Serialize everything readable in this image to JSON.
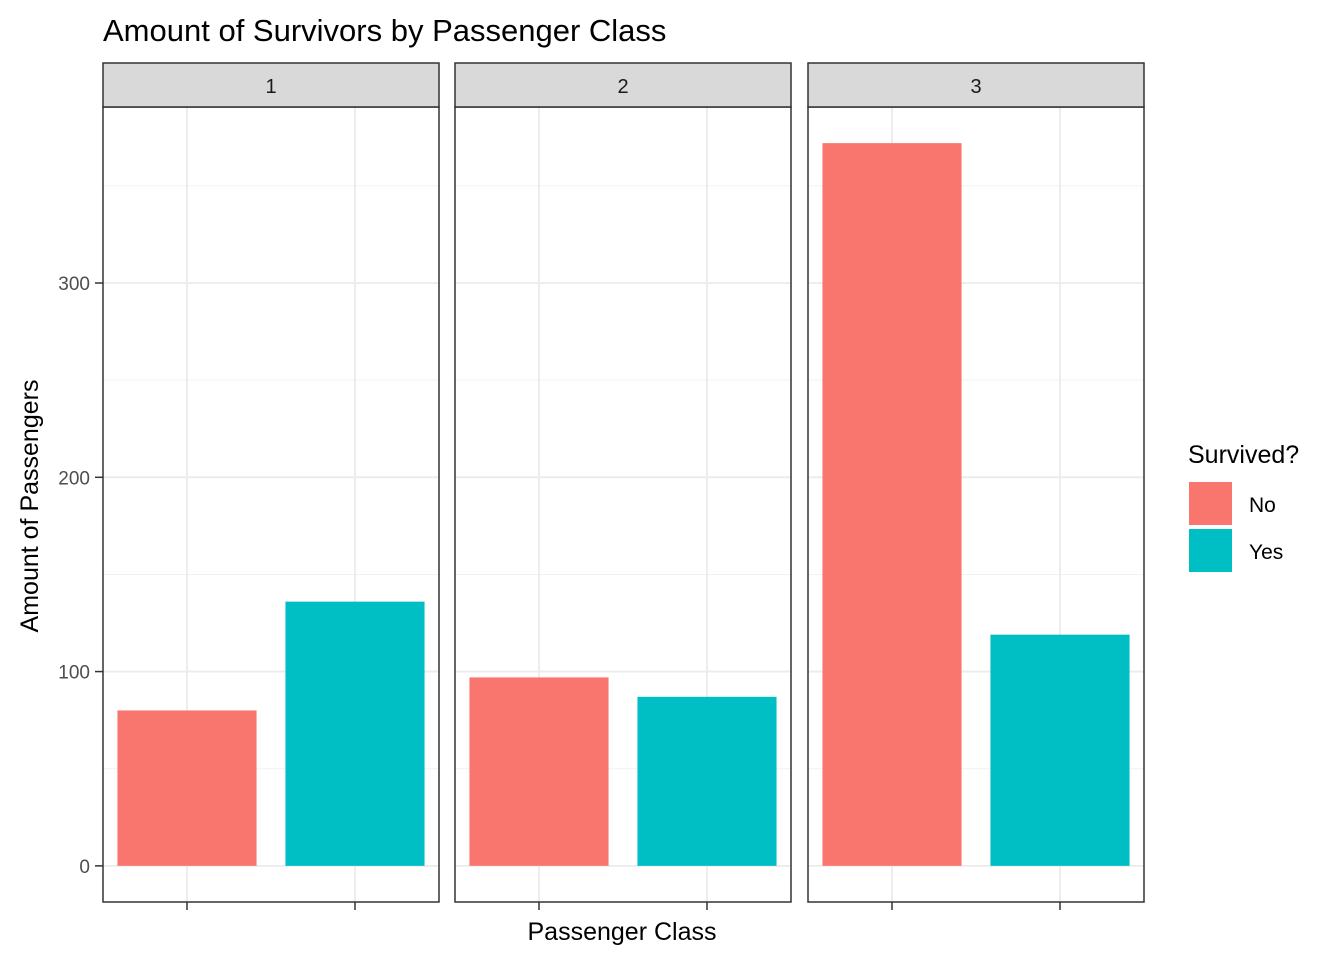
{
  "chart_data": {
    "type": "bar",
    "title": "Amount of Survivors by Passenger Class",
    "xlabel": "Passenger Class",
    "ylabel": "Amount of Passengers",
    "facet_labels": [
      "1",
      "2",
      "3"
    ],
    "categories": [
      "No",
      "Yes"
    ],
    "series": [
      {
        "facet": "1",
        "values": [
          80,
          136
        ]
      },
      {
        "facet": "2",
        "values": [
          97,
          87
        ]
      },
      {
        "facet": "3",
        "values": [
          372,
          119
        ]
      }
    ],
    "y_ticks": [
      0,
      100,
      200,
      300
    ],
    "ylim": [
      -18.6,
      390.6
    ],
    "grid": true,
    "legend": {
      "title": "Survived?",
      "placement": "right",
      "entries": [
        {
          "label": "No",
          "color": "#F8766D"
        },
        {
          "label": "Yes",
          "color": "#00BFC4"
        }
      ]
    },
    "colors": {
      "No": "#F8766D",
      "Yes": "#00BFC4"
    }
  }
}
